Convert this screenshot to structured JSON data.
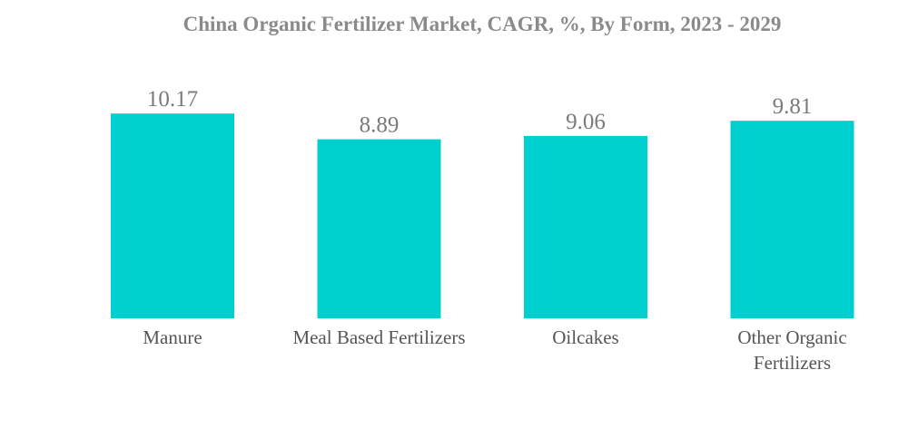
{
  "chart_data": {
    "type": "bar",
    "title": "China Organic Fertilizer Market, CAGR, %, By Form, 2023 - 2029",
    "xlabel": "",
    "ylabel": "",
    "categories": [
      [
        "Manure"
      ],
      [
        "Meal Based Fertilizers"
      ],
      [
        "Oilcakes"
      ],
      [
        "Other Organic",
        "Fertilizers"
      ]
    ],
    "values": [
      10.17,
      8.89,
      9.06,
      9.81
    ],
    "value_labels": [
      "10.17",
      "8.89",
      "9.06",
      "9.81"
    ],
    "bar_color": "#00cfcf",
    "grid": false,
    "legend": "none"
  }
}
